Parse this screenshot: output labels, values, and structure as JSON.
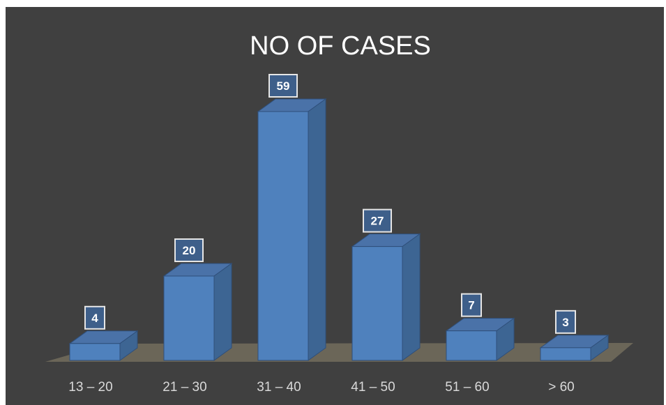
{
  "chart_data": {
    "type": "bar",
    "title": "NO OF CASES",
    "categories": [
      "13 – 20",
      "21 – 30",
      "31 – 40",
      "41 – 50",
      "51 – 60",
      "> 60"
    ],
    "values": [
      4,
      20,
      59,
      27,
      7,
      3
    ],
    "xlabel": "",
    "ylabel": "",
    "ylim": [
      0,
      59
    ],
    "grid": false,
    "legend": "none",
    "style": "3d-column",
    "colors": {
      "background": "#404040",
      "bar_front": "#4f81bd",
      "bar_side": "#3d6593",
      "bar_top": "#4a72a8",
      "floor": "#6b6658",
      "label_box_border": "#e6e6e6"
    }
  }
}
